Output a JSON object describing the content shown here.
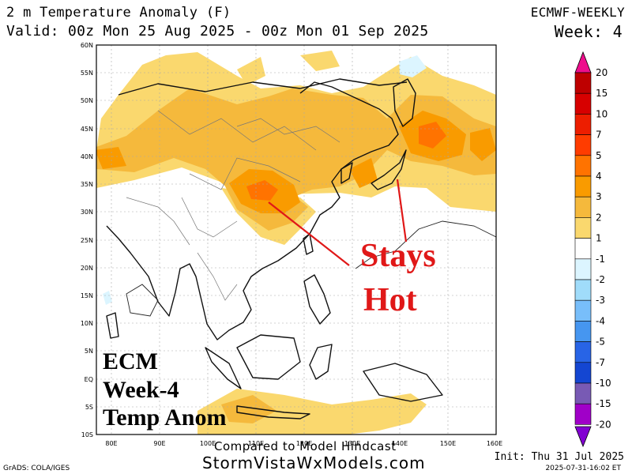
{
  "header": {
    "title_line1": "2 m Temperature Anomaly (F)",
    "title_line2": "Valid: 00z Mon 25 Aug 2025 - 00z Mon 01 Sep 2025",
    "model": "ECMWF-WEEKLY",
    "week": "Week: 4"
  },
  "axes": {
    "lat_labels": [
      "60N",
      "55N",
      "50N",
      "45N",
      "40N",
      "35N",
      "30N",
      "25N",
      "20N",
      "15N",
      "10N",
      "5N",
      "EQ",
      "5S",
      "10S"
    ],
    "lon_labels": [
      "80E",
      "90E",
      "100E",
      "110E",
      "120E",
      "130E",
      "140E",
      "150E",
      "160E"
    ]
  },
  "colorbar": {
    "labels": [
      "20",
      "15",
      "10",
      "7",
      "5",
      "4",
      "3",
      "2",
      "1",
      "-1",
      "-2",
      "-3",
      "-4",
      "-5",
      "-7",
      "-10",
      "-15",
      "-20"
    ],
    "colors": [
      "#ee0e8c",
      "#be0000",
      "#d70000",
      "#ed1e00",
      "#ff3c00",
      "#ff7300",
      "#f99b00",
      "#f5b93c",
      "#fad86e",
      "#ffffff",
      "#dcf5ff",
      "#a0dcfa",
      "#78befa",
      "#4696f0",
      "#2864e6",
      "#1446d2",
      "#785ab4",
      "#a000c8",
      "#8200d2"
    ]
  },
  "annotations": {
    "stays": "Stays",
    "hot": "Hot",
    "ecm_line1": "ECM",
    "ecm_line2": "Week-4",
    "ecm_line3": "Temp Anom",
    "annotation_color": "#e01818"
  },
  "footer": {
    "compared": "Compared to Model Hindcast",
    "site": "StormVistaWxModels.com",
    "grads": "GrADS: COLA/IGES",
    "init": "Init: Thu 31 Jul 2025",
    "stamp": "2025-07-31-16:02 ET"
  }
}
